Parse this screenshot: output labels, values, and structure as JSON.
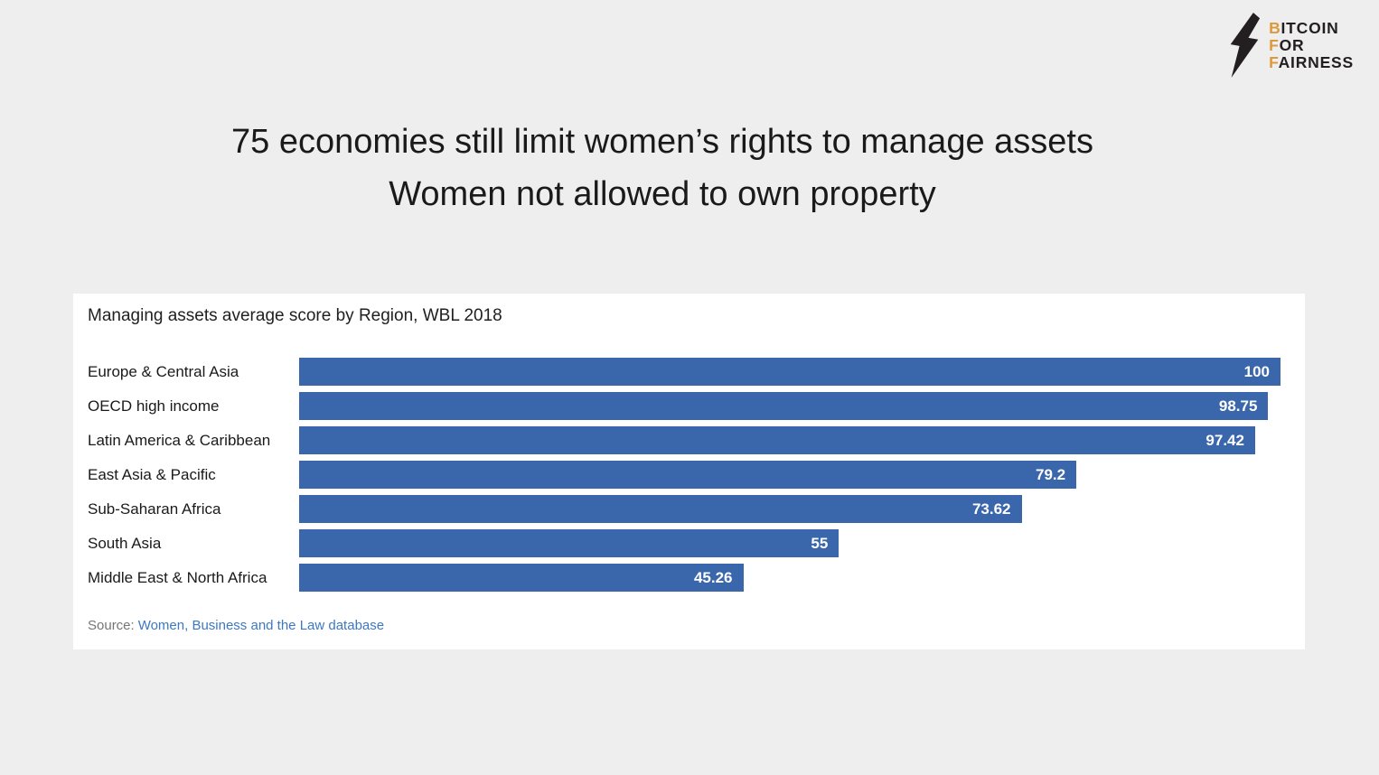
{
  "logo": {
    "icon": "lightning-bolt-icon",
    "accent_color": "#dd9a3c",
    "text_color": "#231f20",
    "lines": [
      {
        "first": "B",
        "rest": "ITCOIN"
      },
      {
        "first": "F",
        "rest": "OR"
      },
      {
        "first": "F",
        "rest": "AIRNESS"
      }
    ]
  },
  "title": {
    "line1": "75 economies still limit women’s rights to manage assets",
    "line2": "Women not allowed to own property"
  },
  "chart_data": {
    "type": "bar",
    "orientation": "horizontal",
    "title": "Managing assets average score by Region, WBL 2018",
    "categories": [
      "Europe & Central Asia",
      "OECD high income",
      "Latin America & Caribbean",
      "East Asia & Pacific",
      "Sub-Saharan Africa",
      "South Asia",
      "Middle East & North Africa"
    ],
    "values": [
      100,
      98.75,
      97.42,
      79.2,
      73.62,
      55,
      45.26
    ],
    "value_labels": [
      "100",
      "98.75",
      "97.42",
      "79.2",
      "73.62",
      "55",
      "45.26"
    ],
    "xlim": [
      0,
      100
    ],
    "bar_color": "#3a67ac",
    "value_label_color": "#ffffff",
    "grid": false,
    "legend": false
  },
  "source": {
    "prefix": "Source:",
    "link_text": "Women, Business and the Law database",
    "link_color": "#3d78c2"
  }
}
